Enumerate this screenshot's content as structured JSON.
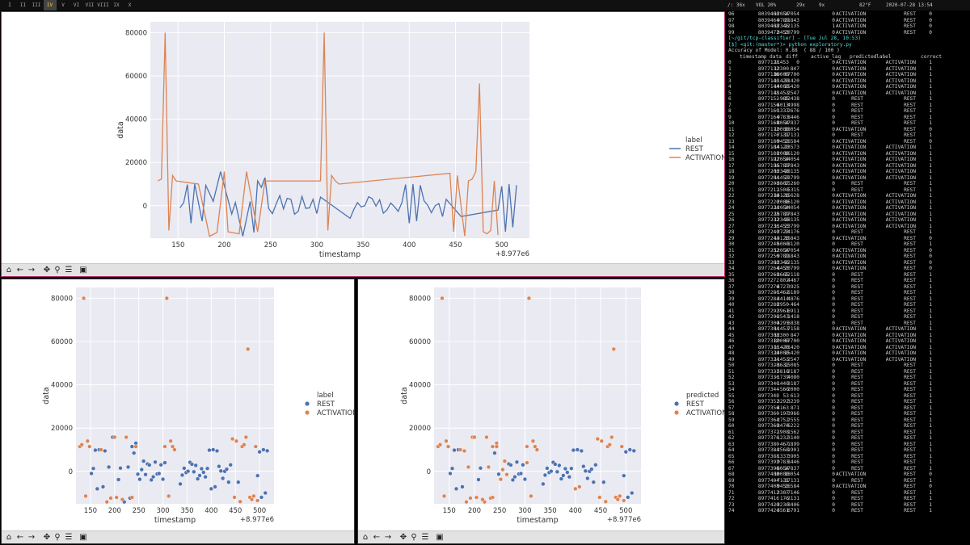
{
  "topbar": {
    "workspaces": [
      "I",
      "II",
      "III",
      "IV",
      "V",
      "VI",
      "VII",
      "VIII",
      "IX",
      "X"
    ],
    "active_workspace": "IV",
    "status": [
      "/: 36x",
      "VOL 20%",
      "29x",
      "9x",
      "82°F",
      "2020-07-28 13:54"
    ]
  },
  "top_plot": {
    "ylabel": "data",
    "xlabel": "timestamp",
    "offset": "+8.977e6",
    "legend_title": "label",
    "legend_items": [
      {
        "label": "REST",
        "color": "#4c72b0"
      },
      {
        "label": "ACTIVATION",
        "color": "#dd8452"
      }
    ]
  },
  "bottom_left_plot": {
    "ylabel": "data",
    "xlabel": "timestamp",
    "offset": "+8.977e6",
    "legend_title": "label",
    "legend_items": [
      {
        "label": "REST",
        "color": "#4c72b0"
      },
      {
        "label": "ACTIVATION",
        "color": "#dd8452"
      }
    ]
  },
  "bottom_right_plot": {
    "ylabel": "data",
    "xlabel": "timestamp",
    "offset": "+8.977e6",
    "legend_title": "predicted",
    "legend_items": [
      {
        "label": "REST",
        "color": "#4c72b0"
      },
      {
        "label": "ACTIVATION",
        "color": "#dd8452"
      }
    ]
  },
  "toolbar_icons": [
    "home-icon",
    "back-arrow-icon",
    "forward-arrow-icon",
    "pan-icon",
    "zoom-icon",
    "configure-icon",
    "save-icon"
  ],
  "chart_data": [
    {
      "type": "line",
      "xlabel": "timestamp",
      "ylabel": "data",
      "x_offset": "+8.977e6",
      "xlim": [
        120,
        530
      ],
      "ylim": [
        -15000,
        85000
      ],
      "xticks": [
        150,
        200,
        250,
        300,
        350,
        400,
        450,
        500
      ],
      "yticks": [
        0,
        20000,
        40000,
        60000,
        80000
      ],
      "legend_title": "label",
      "legend_position": "right",
      "grid": true,
      "series": [
        {
          "name": "REST",
          "color": "#4c72b0",
          "x": [
            152,
            156,
            160,
            164,
            168,
            176,
            180,
            188,
            196,
            208,
            212,
            220,
            228,
            232,
            236,
            240,
            244,
            248,
            252,
            256,
            260,
            264,
            268,
            272,
            276,
            280,
            284,
            288,
            292,
            296,
            300,
            304,
            336,
            340,
            344,
            348,
            352,
            356,
            360,
            364,
            368,
            372,
            376,
            380,
            384,
            388,
            392,
            396,
            400,
            404,
            408,
            412,
            416,
            420,
            424,
            428,
            432,
            436,
            440,
            456,
            496,
            500,
            504,
            508,
            512,
            516
          ],
          "y": [
            -985,
            1337,
            9783,
            -8054,
            10000,
            -7131,
            9453,
            2000,
            15789,
            -3807,
            1500,
            -14120,
            2000,
            -12346,
            11453,
            8453,
            13000,
            -1300,
            -3665,
            802,
            4727,
            -1462,
            3414,
            2950,
            -3961,
            -2543,
            4295,
            -1200,
            -1000,
            3000,
            -3632,
            4000,
            -5819,
            -1739,
            1440,
            -560,
            53,
            4163,
            3292,
            -197,
            2752,
            -3470,
            -1908,
            1232,
            -467,
            -2568,
            1337,
            9783,
            -8054,
            10000,
            -7131,
            9453,
            2307,
            176,
            -3230,
            0,
            1000,
            -5000,
            3000,
            -5000,
            -2000,
            9000,
            -12000,
            10000,
            -10000,
            9500
          ]
        },
        {
          "name": "ACTIVATION",
          "color": "#dd8452",
          "x": [
            128,
            132,
            136,
            140,
            144,
            148,
            172,
            184,
            192,
            200,
            204,
            216,
            224,
            236,
            244,
            304,
            308,
            312,
            316,
            320,
            324,
            444,
            448,
            452,
            460,
            464,
            468,
            472,
            476,
            480,
            484,
            488,
            492,
            496
          ],
          "y": [
            11453,
            12300,
            80000,
            -11420,
            14000,
            11453,
            10000,
            -14120,
            -12346,
            15789,
            -12054,
            -13000,
            15789,
            -12054,
            11453,
            11453,
            80000,
            -11420,
            14000,
            11453,
            10000,
            15000,
            -12000,
            14000,
            -14000,
            11453,
            12300,
            15789,
            56500,
            -12000,
            -13000,
            -11420,
            11453,
            -13500
          ]
        }
      ]
    },
    {
      "type": "scatter",
      "xlabel": "timestamp",
      "ylabel": "data",
      "x_offset": "+8.977e6",
      "xlim": [
        120,
        530
      ],
      "ylim": [
        -15000,
        85000
      ],
      "xticks": [
        150,
        200,
        250,
        300,
        350,
        400,
        450,
        500
      ],
      "yticks": [
        0,
        20000,
        40000,
        60000,
        80000
      ],
      "legend_title": "label",
      "legend_position": "right",
      "grid": true,
      "series": [
        {
          "name": "REST",
          "color": "#4c72b0"
        },
        {
          "name": "ACTIVATION",
          "color": "#dd8452"
        }
      ]
    },
    {
      "type": "scatter",
      "xlabel": "timestamp",
      "ylabel": "data",
      "x_offset": "+8.977e6",
      "xlim": [
        120,
        530
      ],
      "ylim": [
        -15000,
        85000
      ],
      "xticks": [
        150,
        200,
        250,
        300,
        350,
        400,
        450,
        500
      ],
      "yticks": [
        0,
        20000,
        40000,
        60000,
        80000
      ],
      "legend_title": "predicted",
      "legend_position": "right",
      "grid": true,
      "series": [
        {
          "name": "REST",
          "color": "#4c72b0"
        },
        {
          "name": "ACTIVATION",
          "color": "#dd8452"
        }
      ]
    }
  ],
  "terminal": {
    "prev_rows": [
      [
        "96",
        "8039460",
        "-12054",
        "-17054",
        "0",
        "ACTIVATION",
        "REST",
        "0"
      ],
      [
        "97",
        "8039464",
        "9789",
        "21843",
        "0",
        "ACTIVATION",
        "REST",
        "0"
      ],
      [
        "98",
        "8039468",
        "-12346",
        "-22135",
        "1",
        "ACTIVATION",
        "REST",
        "0"
      ],
      [
        "99",
        "8039472",
        "8453",
        "20799",
        "0",
        "ACTIVATION",
        "REST",
        "0"
      ]
    ],
    "prompt_path": "[~/git/tcp-classifier] - [Tue Jul 28, 10:53]",
    "prompt_cmd": "[$] <git:(master*)> python exploratory.py",
    "accuracy_line": "Accuracy of Model: 0.88  ( 88 / 100 )",
    "headers": [
      "timestamp",
      "data",
      "diff",
      "active_lag",
      "predicted",
      "label",
      "correct"
    ],
    "rows": [
      [
        "0",
        "8977128",
        "11453",
        "0",
        "0",
        "ACTIVATION",
        "ACTIVATION",
        "1"
      ],
      [
        "1",
        "8977132",
        "12300",
        "847",
        "0",
        "ACTIVATION",
        "ACTIVATION",
        "1"
      ],
      [
        "2",
        "8977136",
        "80000",
        "67700",
        "0",
        "ACTIVATION",
        "ACTIVATION",
        "1"
      ],
      [
        "3",
        "8977140",
        "-11420",
        "-91420",
        "0",
        "ACTIVATION",
        "ACTIVATION",
        "1"
      ],
      [
        "4",
        "8977144",
        "14000",
        "25420",
        "0",
        "ACTIVATION",
        "ACTIVATION",
        "1"
      ],
      [
        "5",
        "8977148",
        "11453",
        "-2547",
        "0",
        "ACTIVATION",
        "ACTIVATION",
        "1"
      ],
      [
        "6",
        "8977152",
        "-985",
        "-12438",
        "0",
        "REST",
        "REST",
        "1"
      ],
      [
        "7",
        "8977156",
        "4013",
        "4998",
        "0",
        "REST",
        "REST",
        "1"
      ],
      [
        "8",
        "8977160",
        "1337",
        "-2676",
        "0",
        "REST",
        "REST",
        "1"
      ],
      [
        "9",
        "8977164",
        "9783",
        "8446",
        "0",
        "REST",
        "REST",
        "1"
      ],
      [
        "10",
        "8977168",
        "-8054",
        "-17837",
        "0",
        "REST",
        "REST",
        "1"
      ],
      [
        "11",
        "8977172",
        "10000",
        "18054",
        "0",
        "ACTIVATION",
        "REST",
        "0"
      ],
      [
        "12",
        "8977176",
        "-7131",
        "-17131",
        "0",
        "REST",
        "REST",
        "1"
      ],
      [
        "13",
        "8977180",
        "9453",
        "16584",
        "0",
        "ACTIVATION",
        "REST",
        "0"
      ],
      [
        "14",
        "8977184",
        "-14120",
        "-23573",
        "0",
        "ACTIVATION",
        "ACTIVATION",
        "1"
      ],
      [
        "15",
        "8977188",
        "2000",
        "16120",
        "0",
        "ACTIVATION",
        "ACTIVATION",
        "1"
      ],
      [
        "16",
        "8977192",
        "-12054",
        "-14054",
        "0",
        "ACTIVATION",
        "ACTIVATION",
        "1"
      ],
      [
        "17",
        "8977196",
        "15789",
        "27843",
        "0",
        "ACTIVATION",
        "ACTIVATION",
        "1"
      ],
      [
        "18",
        "8977200",
        "-12346",
        "-28135",
        "0",
        "ACTIVATION",
        "ACTIVATION",
        "1"
      ],
      [
        "19",
        "8977204",
        "11453",
        "23799",
        "0",
        "ACTIVATION",
        "ACTIVATION",
        "1"
      ],
      [
        "20",
        "8977208",
        "-3807",
        "-15260",
        "0",
        "REST",
        "REST",
        "1"
      ],
      [
        "21",
        "8977212",
        "1508",
        "5315",
        "0",
        "REST",
        "REST",
        "1"
      ],
      [
        "22",
        "8977216",
        "-14120",
        "-15628",
        "0",
        "ACTIVATION",
        "ACTIVATION",
        "1"
      ],
      [
        "23",
        "8977220",
        "2000",
        "16120",
        "0",
        "ACTIVATION",
        "ACTIVATION",
        "1"
      ],
      [
        "24",
        "8977224",
        "-12054",
        "-14054",
        "0",
        "ACTIVATION",
        "ACTIVATION",
        "1"
      ],
      [
        "25",
        "8977228",
        "15789",
        "27843",
        "0",
        "ACTIVATION",
        "ACTIVATION",
        "1"
      ],
      [
        "26",
        "8977232",
        "-12346",
        "-28135",
        "0",
        "ACTIVATION",
        "ACTIVATION",
        "1"
      ],
      [
        "27",
        "8977236",
        "11453",
        "23799",
        "0",
        "ACTIVATION",
        "ACTIVATION",
        "1"
      ],
      [
        "28",
        "8977240",
        "-2723",
        "-14176",
        "0",
        "REST",
        "REST",
        "1"
      ],
      [
        "29",
        "8977244",
        "13120",
        "15843",
        "0",
        "ACTIVATION",
        "REST",
        "0"
      ],
      [
        "30",
        "8977248",
        "5000",
        "-8120",
        "0",
        "REST",
        "REST",
        "1"
      ],
      [
        "31",
        "8977252",
        "-12054",
        "-17054",
        "0",
        "ACTIVATION",
        "REST",
        "0"
      ],
      [
        "32",
        "8977256",
        "9789",
        "21843",
        "0",
        "ACTIVATION",
        "REST",
        "0"
      ],
      [
        "33",
        "8977260",
        "-12346",
        "-22135",
        "0",
        "ACTIVATION",
        "REST",
        "0"
      ],
      [
        "34",
        "8977264",
        "8453",
        "20799",
        "0",
        "ACTIVATION",
        "REST",
        "0"
      ],
      [
        "35",
        "8977268",
        "-3665",
        "-12118",
        "0",
        "REST",
        "REST",
        "1"
      ],
      [
        "36",
        "8977272",
        "802",
        "4467",
        "0",
        "REST",
        "REST",
        "1"
      ],
      [
        "37",
        "8977276",
        "4727",
        "3925",
        "0",
        "REST",
        "REST",
        "1"
      ],
      [
        "38",
        "8977280",
        "-1462",
        "-6189",
        "0",
        "REST",
        "REST",
        "1"
      ],
      [
        "39",
        "8977284",
        "3414",
        "4876",
        "0",
        "REST",
        "REST",
        "1"
      ],
      [
        "40",
        "8977288",
        "2950",
        "-464",
        "0",
        "REST",
        "REST",
        "1"
      ],
      [
        "41",
        "8977292",
        "-3961",
        "-6911",
        "0",
        "REST",
        "REST",
        "1"
      ],
      [
        "42",
        "8977296",
        "-2543",
        "1418",
        "0",
        "REST",
        "REST",
        "1"
      ],
      [
        "43",
        "8977300",
        "4295",
        "6838",
        "0",
        "REST",
        "REST",
        "1"
      ],
      [
        "44",
        "8977304",
        "11453",
        "7158",
        "0",
        "ACTIVATION",
        "ACTIVATION",
        "1"
      ],
      [
        "45",
        "8977308",
        "12300",
        "847",
        "0",
        "ACTIVATION",
        "ACTIVATION",
        "1"
      ],
      [
        "46",
        "8977312",
        "80000",
        "67700",
        "0",
        "ACTIVATION",
        "ACTIVATION",
        "1"
      ],
      [
        "47",
        "8977316",
        "-11420",
        "-91420",
        "0",
        "ACTIVATION",
        "ACTIVATION",
        "1"
      ],
      [
        "48",
        "8977320",
        "14000",
        "25420",
        "0",
        "ACTIVATION",
        "ACTIVATION",
        "1"
      ],
      [
        "49",
        "8977324",
        "11453",
        "-2547",
        "0",
        "ACTIVATION",
        "ACTIVATION",
        "1"
      ],
      [
        "50",
        "8977328",
        "-3632",
        "-15085",
        "0",
        "REST",
        "REST",
        "1"
      ],
      [
        "51",
        "8977332",
        "-5819",
        "-2187",
        "0",
        "REST",
        "REST",
        "1"
      ],
      [
        "52",
        "8977336",
        "-1739",
        "4080",
        "0",
        "REST",
        "REST",
        "1"
      ],
      [
        "53",
        "8977340",
        "1440",
        "3187",
        "0",
        "REST",
        "REST",
        "1"
      ],
      [
        "54",
        "8977344",
        "-560",
        "-2000",
        "0",
        "REST",
        "REST",
        "1"
      ],
      [
        "55",
        "8977348",
        "53",
        "613",
        "0",
        "REST",
        "REST",
        "1"
      ],
      [
        "56",
        "8977352",
        "3292",
        "3239",
        "0",
        "REST",
        "REST",
        "1"
      ],
      [
        "57",
        "8977356",
        "4163",
        "871",
        "0",
        "REST",
        "REST",
        "1"
      ],
      [
        "58",
        "8977360",
        "-197",
        "-3966",
        "0",
        "REST",
        "REST",
        "1"
      ],
      [
        "59",
        "8977364",
        "2752",
        "2555",
        "0",
        "REST",
        "REST",
        "1"
      ],
      [
        "60",
        "8977368",
        "-3470",
        "-6222",
        "0",
        "REST",
        "REST",
        "1"
      ],
      [
        "61",
        "8977372",
        "-1908",
        "1562",
        "0",
        "REST",
        "REST",
        "1"
      ],
      [
        "62",
        "8977376",
        "1232",
        "3140",
        "0",
        "REST",
        "REST",
        "1"
      ],
      [
        "63",
        "8977380",
        "-467",
        "-1899",
        "0",
        "REST",
        "REST",
        "1"
      ],
      [
        "64",
        "8977384",
        "-2568",
        "-1901",
        "0",
        "REST",
        "REST",
        "1"
      ],
      [
        "65",
        "8977388",
        "1337",
        "3905",
        "0",
        "REST",
        "REST",
        "1"
      ],
      [
        "66",
        "8977392",
        "9783",
        "8446",
        "0",
        "REST",
        "REST",
        "1"
      ],
      [
        "67",
        "8977396",
        "-8054",
        "-17837",
        "0",
        "REST",
        "REST",
        "1"
      ],
      [
        "68",
        "8977400",
        "10000",
        "18054",
        "0",
        "ACTIVATION",
        "REST",
        "0"
      ],
      [
        "69",
        "8977404",
        "-7131",
        "-17131",
        "0",
        "REST",
        "REST",
        "1"
      ],
      [
        "70",
        "8977408",
        "9453",
        "16584",
        "0",
        "ACTIVATION",
        "REST",
        "0"
      ],
      [
        "71",
        "8977412",
        "2307",
        "-7146",
        "0",
        "REST",
        "REST",
        "1"
      ],
      [
        "72",
        "8977416",
        "176",
        "-2131",
        "0",
        "REST",
        "REST",
        "1"
      ],
      [
        "73",
        "8977420",
        "-3230",
        "-3406",
        "0",
        "REST",
        "REST",
        "1"
      ],
      [
        "74",
        "8977424",
        "3561",
        "6791",
        "0",
        "REST",
        "REST",
        "1"
      ]
    ]
  }
}
